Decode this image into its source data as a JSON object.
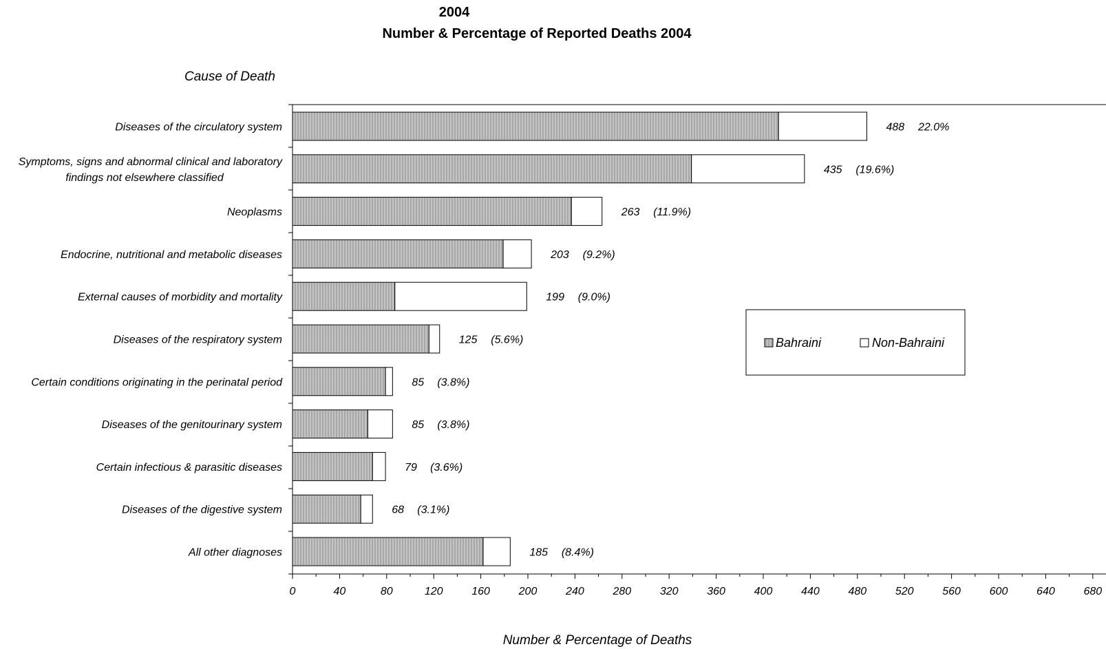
{
  "chart_data": {
    "type": "bar",
    "orientation": "horizontal",
    "stacked": true,
    "title": "2004",
    "subtitle": "Number & Percentage of Reported Deaths 2004",
    "ylabel": "Cause of Death",
    "xlabel": "Number & Percentage of Deaths",
    "xlim": [
      0,
      680
    ],
    "xticks": [
      "0",
      "40",
      "80",
      "120",
      "160",
      "200",
      "240",
      "280",
      "320",
      "360",
      "400",
      "440",
      "480",
      "520",
      "560",
      "600",
      "640",
      "680"
    ],
    "categories": [
      [
        "Diseases of the circulatory system"
      ],
      [
        "Symptoms, signs and abnormal clinical and laboratory",
        "findings not elsewhere classified"
      ],
      [
        "Neoplasms"
      ],
      [
        "Endocrine, nutritional and metabolic diseases"
      ],
      [
        "External causes of morbidity and mortality"
      ],
      [
        "Diseases of the respiratory system"
      ],
      [
        "Certain conditions originating in the perinatal period"
      ],
      [
        "Diseases of the genitourinary system"
      ],
      [
        "Certain infectious & parasitic diseases"
      ],
      [
        "Diseases of the digestive system"
      ],
      [
        "All other diagnoses"
      ]
    ],
    "series": [
      {
        "name": "Bahraini",
        "color": "#c0c0c0",
        "pattern": "vertical-stripes",
        "values": [
          413,
          339,
          237,
          179,
          87,
          116,
          79,
          64,
          68,
          58,
          162
        ]
      },
      {
        "name": "Non-Bahraini",
        "color": "#ffffff",
        "values": [
          75,
          96,
          26,
          24,
          112,
          9,
          6,
          21,
          11,
          10,
          23
        ]
      }
    ],
    "totals": [
      488,
      435,
      263,
      203,
      199,
      125,
      85,
      85,
      79,
      68,
      185
    ],
    "labels": [
      "488",
      "435",
      "263",
      "203",
      "199",
      "125",
      "85",
      "85",
      "79",
      "68",
      "185"
    ],
    "pct_labels": [
      "22.0%",
      "(19.6%)",
      "(11.9%)",
      "(9.2%)",
      "(9.0%)",
      "(5.6%)",
      "(3.8%)",
      "(3.8%)",
      "(3.6%)",
      "(3.1%)",
      "(8.4%)"
    ],
    "legend": {
      "position": "center-right",
      "entries": [
        "Bahraini",
        "Non-Bahraini"
      ]
    },
    "grid": false
  }
}
